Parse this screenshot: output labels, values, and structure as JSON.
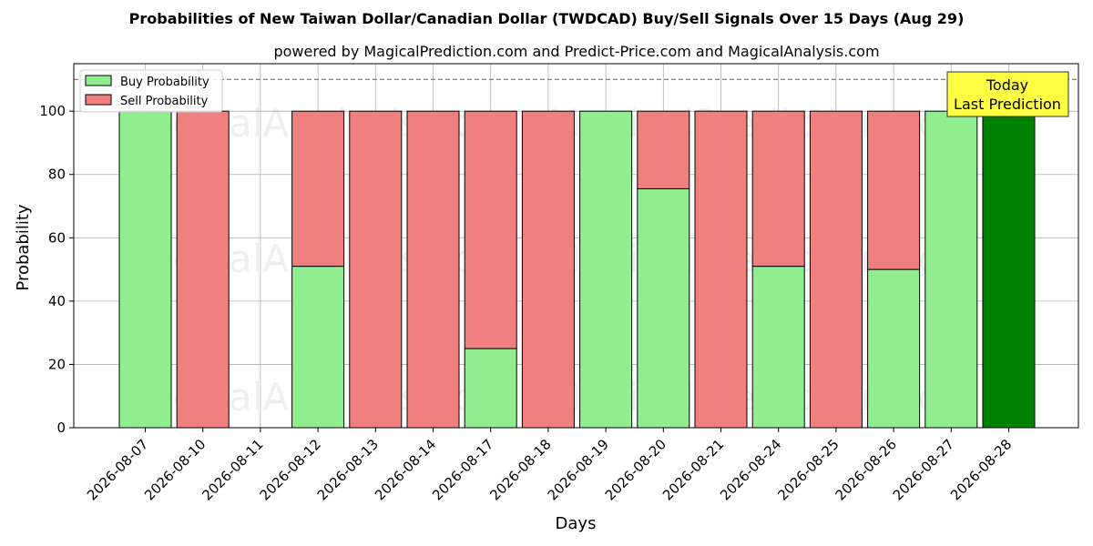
{
  "chart_data": {
    "type": "bar",
    "title": "Probabilities of New Taiwan Dollar/Canadian Dollar (TWDCAD) Buy/Sell Signals Over 15 Days (Aug 29)",
    "subtitle": "powered by MagicalPrediction.com and Predict-Price.com and MagicalAnalysis.com",
    "xlabel": "Days",
    "ylabel": "Probability",
    "ylim": [
      0,
      115
    ],
    "yticks": [
      0,
      20,
      40,
      60,
      80,
      100
    ],
    "reference_line": 110,
    "grid": true,
    "legend_position": "top-left",
    "categories": [
      "2026-08-07",
      "2026-08-10",
      "2026-08-11",
      "2026-08-12",
      "2026-08-13",
      "2026-08-14",
      "2026-08-17",
      "2026-08-18",
      "2026-08-19",
      "2026-08-20",
      "2026-08-21",
      "2026-08-24",
      "2026-08-25",
      "2026-08-26",
      "2026-08-27",
      "2026-08-28"
    ],
    "series": [
      {
        "name": "Buy Probability",
        "color": "#90ee90",
        "values": [
          100,
          0,
          null,
          51,
          0,
          0,
          25,
          0,
          100,
          75.5,
          0,
          51,
          0,
          50,
          100,
          100
        ]
      },
      {
        "name": "Sell Probability",
        "color": "#f08080",
        "values": [
          0,
          100,
          null,
          49,
          100,
          100,
          75,
          100,
          0,
          24.5,
          100,
          49,
          100,
          50,
          0,
          0
        ]
      }
    ],
    "highlight": {
      "category": "2026-08-28",
      "color": "#008000"
    },
    "annotation": {
      "lines": [
        "Today",
        "Last Prediction"
      ],
      "color": "#ffff44"
    },
    "watermarks": [
      "MagicalAnalysis.com",
      "MagicalPrediction.com"
    ]
  }
}
